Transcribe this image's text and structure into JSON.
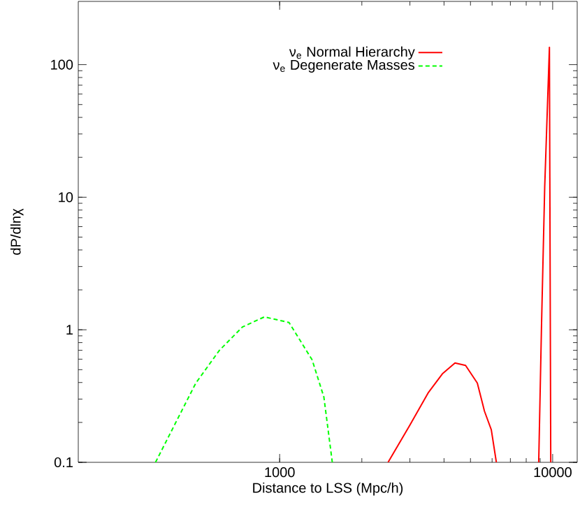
{
  "chart_data": {
    "type": "line",
    "xlabel": "Distance to LSS (Mpc/h)",
    "ylabel": "dP/dlnχ",
    "log": "xy",
    "xlim": [
      183,
      12300
    ],
    "ylim": [
      0.1,
      300
    ],
    "xticks": [
      1000,
      10000
    ],
    "yticks": [
      0.1,
      1,
      10,
      100
    ],
    "legend": "top",
    "series": [
      {
        "name": "ν$_{e}$ Normal Hierarchy",
        "color": "#ff0000",
        "line_style": "solid",
        "x": [
          2495,
          2999,
          3509,
          3945,
          4388,
          4797,
          5297,
          5570,
          5623,
          5960,
          6220,
          7000,
          8890,
          9100,
          9350,
          9730,
          9840
        ],
        "values": [
          0.1,
          0.191,
          0.337,
          0.465,
          0.561,
          0.538,
          0.396,
          0.264,
          0.244,
          0.176,
          0.1,
          null,
          0.1,
          1.05,
          11.9,
          135,
          0.1
        ]
      },
      {
        "name": "ν$_{e}$ Degenerate Masses",
        "color": "#00ff00",
        "line_style": "dashed",
        "x": [
          351,
          493,
          601,
          731,
          879,
          1082,
          1315,
          1452,
          1559
        ],
        "values": [
          0.1,
          0.396,
          0.698,
          1.05,
          1.25,
          1.135,
          0.593,
          0.311,
          0.1
        ]
      }
    ]
  }
}
